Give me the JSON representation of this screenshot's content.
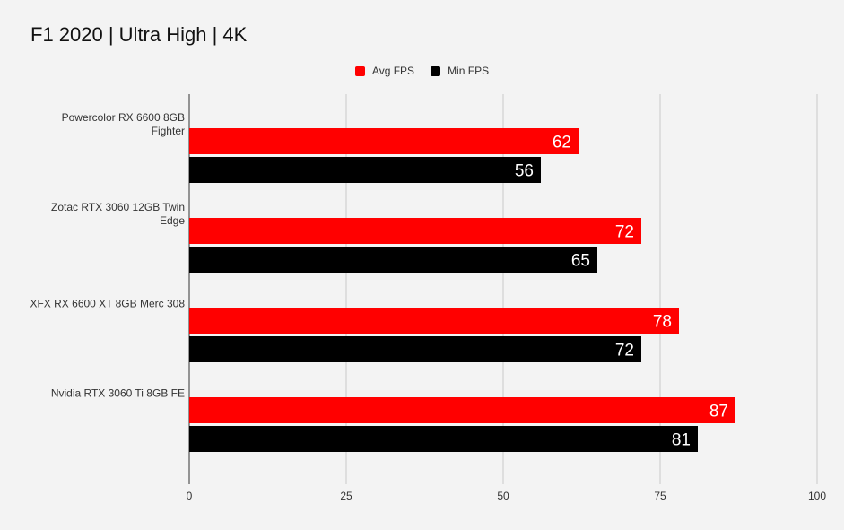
{
  "chart_data": {
    "type": "bar",
    "orientation": "horizontal",
    "title": "F1 2020 | Ultra High | 4K",
    "categories": [
      "Powercolor RX 6600 8GB Fighter",
      "Zotac RTX 3060 12GB Twin Edge",
      "XFX RX 6600 XT 8GB Merc 308",
      "Nvidia RTX 3060 Ti 8GB FE"
    ],
    "series": [
      {
        "name": "Avg FPS",
        "color": "#ff0000",
        "values": [
          62,
          72,
          78,
          87
        ]
      },
      {
        "name": "Min FPS",
        "color": "#000000",
        "values": [
          56,
          65,
          72,
          81
        ]
      }
    ],
    "xlim": [
      0,
      100
    ],
    "xticks": [
      0,
      25,
      50,
      75,
      100
    ],
    "grid": true,
    "legend": "top-center",
    "data_labels": true
  }
}
